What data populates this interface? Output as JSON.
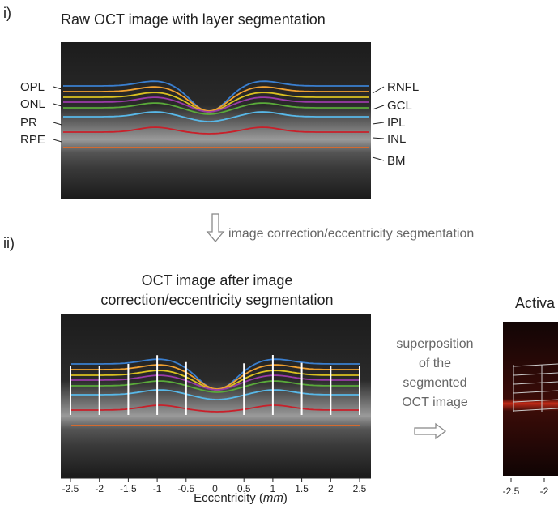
{
  "panel_i": {
    "label": "i)",
    "title": "Raw OCT image with layer segmentation",
    "left_layers": [
      "OPL",
      "ONL",
      "PR",
      "RPE"
    ],
    "right_layers": [
      "RNFL",
      "GCL",
      "IPL",
      "INL",
      "BM"
    ]
  },
  "step_arrow_text": "image correction/eccentricity segmentation",
  "panel_ii": {
    "label": "ii)",
    "title_lines": [
      "OCT image after image",
      "correction/eccentricity segmentation"
    ],
    "xticks": [
      "-2.5",
      "-2",
      "-1.5",
      "-1",
      "-0.5",
      "0",
      "0.5",
      "1",
      "1.5",
      "2",
      "2.5"
    ],
    "xlabel_parts": [
      "Eccentricity (",
      "mm",
      ")"
    ],
    "superposition_lines": [
      "superposition",
      "of the",
      "segmented",
      "OCT image"
    ],
    "right_title": "Activa",
    "right_xticks": [
      "-2.5",
      "-2"
    ]
  }
}
